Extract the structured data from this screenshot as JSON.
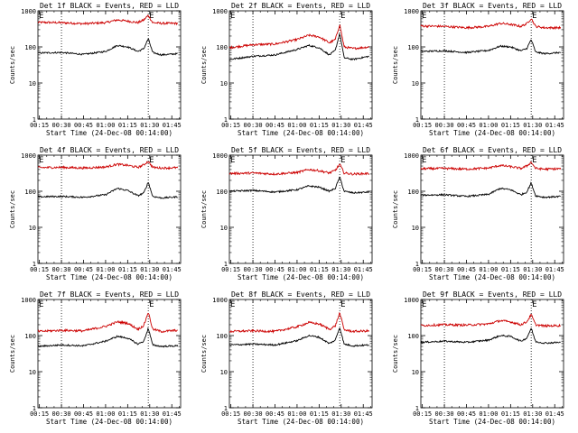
{
  "chart_data": [
    {
      "type": "line",
      "title": "Det 1f BLACK = Events, RED = LLD",
      "xlabel": "Start Time (24-Dec-08 00:14:00)",
      "ylabel": "Counts/sec",
      "xticks": [
        "00:15",
        "00:30",
        "00:45",
        "01:00",
        "01:15",
        "01:30",
        "01:45"
      ],
      "yticks": [
        "1",
        "10",
        "100",
        "1000"
      ],
      "yscale": "log",
      "ylim": [
        1,
        1000
      ],
      "markers": [
        {
          "label": "E",
          "time": "00:14"
        },
        {
          "label": "E",
          "time": "01:29"
        }
      ],
      "dotted_lines": [
        "00:30",
        "01:29"
      ],
      "series": [
        {
          "color": "#cc0000",
          "x": [
            "00:14",
            "00:30",
            "00:45",
            "01:00",
            "01:08",
            "01:15",
            "01:22",
            "01:26",
            "01:29",
            "01:32",
            "01:38",
            "01:49"
          ],
          "values": [
            480,
            470,
            440,
            470,
            560,
            520,
            470,
            560,
            750,
            470,
            450,
            450
          ]
        },
        {
          "color": "#000000",
          "x": [
            "00:14",
            "00:30",
            "00:45",
            "01:00",
            "01:08",
            "01:15",
            "01:22",
            "01:26",
            "01:29",
            "01:32",
            "01:38",
            "01:49"
          ],
          "values": [
            68,
            70,
            62,
            75,
            110,
            100,
            75,
            90,
            170,
            70,
            60,
            65
          ]
        }
      ]
    },
    {
      "type": "line",
      "title": "Det 2f BLACK = Events, RED = LLD",
      "xlabel": "Start Time (24-Dec-08 00:14:00)",
      "ylabel": "Counts/sec",
      "xticks": [
        "00:15",
        "00:30",
        "00:45",
        "01:00",
        "01:15",
        "01:30",
        "01:45"
      ],
      "yticks": [
        "1",
        "10",
        "100",
        "1000"
      ],
      "yscale": "log",
      "ylim": [
        1,
        1000
      ],
      "markers": [
        {
          "label": "E",
          "time": "00:14"
        },
        {
          "label": "E",
          "time": "01:29"
        }
      ],
      "dotted_lines": [
        "00:30",
        "01:29"
      ],
      "series": [
        {
          "color": "#cc0000",
          "x": [
            "00:14",
            "00:30",
            "00:45",
            "01:00",
            "01:08",
            "01:15",
            "01:22",
            "01:26",
            "01:29",
            "01:32",
            "01:38",
            "01:49"
          ],
          "values": [
            95,
            115,
            120,
            160,
            210,
            190,
            130,
            160,
            420,
            100,
            90,
            100
          ]
        },
        {
          "color": "#000000",
          "x": [
            "00:14",
            "00:30",
            "00:45",
            "01:00",
            "01:08",
            "01:15",
            "01:22",
            "01:26",
            "01:29",
            "01:32",
            "01:38",
            "01:49"
          ],
          "values": [
            45,
            55,
            60,
            85,
            110,
            95,
            60,
            80,
            240,
            50,
            45,
            55
          ]
        }
      ]
    },
    {
      "type": "line",
      "title": "Det 3f BLACK = Events, RED = LLD",
      "xlabel": "Start Time (24-Dec-08 00:14:00)",
      "ylabel": "Counts/sec",
      "xticks": [
        "00:15",
        "00:30",
        "00:45",
        "01:00",
        "01:15",
        "01:30",
        "01:45"
      ],
      "yticks": [
        "1",
        "10",
        "100",
        "1000"
      ],
      "yscale": "log",
      "ylim": [
        1,
        1000
      ],
      "markers": [
        {
          "label": "E",
          "time": "00:14"
        },
        {
          "label": "E",
          "time": "01:29"
        }
      ],
      "dotted_lines": [
        "00:30",
        "01:29"
      ],
      "series": [
        {
          "color": "#cc0000",
          "x": [
            "00:14",
            "00:30",
            "00:45",
            "01:00",
            "01:08",
            "01:15",
            "01:22",
            "01:26",
            "01:29",
            "01:32",
            "01:38",
            "01:49"
          ],
          "values": [
            380,
            370,
            340,
            370,
            450,
            420,
            370,
            440,
            620,
            370,
            340,
            340
          ]
        },
        {
          "color": "#000000",
          "x": [
            "00:14",
            "00:30",
            "00:45",
            "01:00",
            "01:08",
            "01:15",
            "01:22",
            "01:26",
            "01:29",
            "01:32",
            "01:38",
            "01:49"
          ],
          "values": [
            75,
            78,
            70,
            80,
            105,
            100,
            78,
            90,
            160,
            72,
            65,
            70
          ]
        }
      ]
    },
    {
      "type": "line",
      "title": "Det 4f BLACK = Events, RED = LLD",
      "xlabel": "Start Time (24-Dec-08 00:14:00)",
      "ylabel": "Counts/sec",
      "xticks": [
        "00:15",
        "00:30",
        "00:45",
        "01:00",
        "01:15",
        "01:30",
        "01:45"
      ],
      "yticks": [
        "1",
        "10",
        "100",
        "1000"
      ],
      "yscale": "log",
      "ylim": [
        1,
        1000
      ],
      "markers": [
        {
          "label": "E",
          "time": "00:14"
        },
        {
          "label": "E",
          "time": "01:29"
        }
      ],
      "dotted_lines": [
        "00:30",
        "01:29"
      ],
      "series": [
        {
          "color": "#cc0000",
          "x": [
            "00:14",
            "00:30",
            "00:45",
            "01:00",
            "01:08",
            "01:15",
            "01:22",
            "01:26",
            "01:29",
            "01:32",
            "01:38",
            "01:49"
          ],
          "values": [
            450,
            460,
            440,
            470,
            560,
            520,
            460,
            540,
            680,
            460,
            440,
            450
          ]
        },
        {
          "color": "#000000",
          "x": [
            "00:14",
            "00:30",
            "00:45",
            "01:00",
            "01:08",
            "01:15",
            "01:22",
            "01:26",
            "01:29",
            "01:32",
            "01:38",
            "01:49"
          ],
          "values": [
            70,
            72,
            68,
            80,
            120,
            105,
            75,
            90,
            180,
            72,
            65,
            70
          ]
        }
      ]
    },
    {
      "type": "line",
      "title": "Det 5f BLACK = Events, RED = LLD",
      "xlabel": "Start Time (24-Dec-08 00:14:00)",
      "ylabel": "Counts/sec",
      "xticks": [
        "00:15",
        "00:30",
        "00:45",
        "01:00",
        "01:15",
        "01:30",
        "01:45"
      ],
      "yticks": [
        "1",
        "10",
        "100",
        "1000"
      ],
      "yscale": "log",
      "ylim": [
        1,
        1000
      ],
      "markers": [
        {
          "label": "E",
          "time": "00:14"
        },
        {
          "label": "E",
          "time": "01:29"
        }
      ],
      "dotted_lines": [
        "00:30",
        "01:29"
      ],
      "series": [
        {
          "color": "#cc0000",
          "x": [
            "00:14",
            "00:30",
            "00:45",
            "01:00",
            "01:08",
            "01:15",
            "01:22",
            "01:26",
            "01:29",
            "01:32",
            "01:38",
            "01:49"
          ],
          "values": [
            310,
            320,
            300,
            330,
            400,
            370,
            320,
            380,
            560,
            320,
            300,
            310
          ]
        },
        {
          "color": "#000000",
          "x": [
            "00:14",
            "00:30",
            "00:45",
            "01:00",
            "01:08",
            "01:15",
            "01:22",
            "01:26",
            "01:29",
            "01:32",
            "01:38",
            "01:49"
          ],
          "values": [
            100,
            105,
            95,
            110,
            140,
            130,
            100,
            120,
            250,
            100,
            90,
            95
          ]
        }
      ]
    },
    {
      "type": "line",
      "title": "Det 6f BLACK = Events, RED = LLD",
      "xlabel": "Start Time (24-Dec-08 00:14:00)",
      "ylabel": "Counts/sec",
      "xticks": [
        "00:15",
        "00:30",
        "00:45",
        "01:00",
        "01:15",
        "01:30",
        "01:45"
      ],
      "yticks": [
        "1",
        "10",
        "100",
        "1000"
      ],
      "yscale": "log",
      "ylim": [
        1,
        1000
      ],
      "markers": [
        {
          "label": "E",
          "time": "00:14"
        },
        {
          "label": "E",
          "time": "01:29"
        }
      ],
      "dotted_lines": [
        "00:30",
        "01:29"
      ],
      "series": [
        {
          "color": "#cc0000",
          "x": [
            "00:14",
            "00:30",
            "00:45",
            "01:00",
            "01:08",
            "01:15",
            "01:22",
            "01:26",
            "01:29",
            "01:32",
            "01:38",
            "01:49"
          ],
          "values": [
            420,
            430,
            410,
            440,
            520,
            480,
            430,
            500,
            640,
            430,
            410,
            420
          ]
        },
        {
          "color": "#000000",
          "x": [
            "00:14",
            "00:30",
            "00:45",
            "01:00",
            "01:08",
            "01:15",
            "01:22",
            "01:26",
            "01:29",
            "01:32",
            "01:38",
            "01:49"
          ],
          "values": [
            78,
            80,
            72,
            82,
            120,
            110,
            80,
            95,
            170,
            75,
            68,
            72
          ]
        }
      ]
    },
    {
      "type": "line",
      "title": "Det 7f BLACK = Events, RED = LLD",
      "xlabel": "Start Time (24-Dec-08 00:14:00)",
      "ylabel": "Counts/sec",
      "xticks": [
        "00:15",
        "00:30",
        "00:45",
        "01:00",
        "01:15",
        "01:30",
        "01:45"
      ],
      "yticks": [
        "1",
        "10",
        "100",
        "1000"
      ],
      "yscale": "log",
      "ylim": [
        1,
        1000
      ],
      "markers": [
        {
          "label": "E",
          "time": "00:14"
        },
        {
          "label": "E",
          "time": "01:29"
        }
      ],
      "dotted_lines": [
        "00:30",
        "01:29"
      ],
      "series": [
        {
          "color": "#cc0000",
          "x": [
            "00:14",
            "00:30",
            "00:45",
            "01:00",
            "01:08",
            "01:15",
            "01:22",
            "01:26",
            "01:29",
            "01:32",
            "01:38",
            "01:49"
          ],
          "values": [
            130,
            140,
            135,
            180,
            240,
            220,
            150,
            190,
            450,
            150,
            130,
            140
          ]
        },
        {
          "color": "#000000",
          "x": [
            "00:14",
            "00:30",
            "00:45",
            "01:00",
            "01:08",
            "01:15",
            "01:22",
            "01:26",
            "01:29",
            "01:32",
            "01:38",
            "01:49"
          ],
          "values": [
            50,
            55,
            52,
            70,
            95,
            85,
            58,
            70,
            160,
            55,
            50,
            52
          ]
        }
      ]
    },
    {
      "type": "line",
      "title": "Det 8f BLACK = Events, RED = LLD",
      "xlabel": "Start Time (24-Dec-08 00:14:00)",
      "ylabel": "Counts/sec",
      "xticks": [
        "00:15",
        "00:30",
        "00:45",
        "01:00",
        "01:15",
        "01:30",
        "01:45"
      ],
      "yticks": [
        "1",
        "10",
        "100",
        "1000"
      ],
      "yscale": "log",
      "ylim": [
        1,
        1000
      ],
      "markers": [
        {
          "label": "E",
          "time": "00:14"
        },
        {
          "label": "E",
          "time": "01:29"
        }
      ],
      "dotted_lines": [
        "00:30",
        "01:29"
      ],
      "series": [
        {
          "color": "#cc0000",
          "x": [
            "00:14",
            "00:30",
            "00:45",
            "01:00",
            "01:08",
            "01:15",
            "01:22",
            "01:26",
            "01:29",
            "01:32",
            "01:38",
            "01:49"
          ],
          "values": [
            130,
            135,
            130,
            175,
            230,
            210,
            150,
            185,
            430,
            145,
            130,
            135
          ]
        },
        {
          "color": "#000000",
          "x": [
            "00:14",
            "00:30",
            "00:45",
            "01:00",
            "01:08",
            "01:15",
            "01:22",
            "01:26",
            "01:29",
            "01:32",
            "01:38",
            "01:49"
          ],
          "values": [
            55,
            58,
            55,
            72,
            100,
            90,
            60,
            75,
            170,
            58,
            52,
            55
          ]
        }
      ]
    },
    {
      "type": "line",
      "title": "Det 9f BLACK = Events, RED = LLD",
      "xlabel": "Start Time (24-Dec-08 00:14:00)",
      "ylabel": "Counts/sec",
      "xticks": [
        "00:15",
        "00:30",
        "00:45",
        "01:00",
        "01:15",
        "01:30",
        "01:45"
      ],
      "yticks": [
        "1",
        "10",
        "100",
        "1000"
      ],
      "yscale": "log",
      "ylim": [
        1,
        1000
      ],
      "markers": [
        {
          "label": "E",
          "time": "00:14"
        },
        {
          "label": "E",
          "time": "01:29"
        }
      ],
      "dotted_lines": [
        "00:30",
        "01:29"
      ],
      "series": [
        {
          "color": "#cc0000",
          "x": [
            "00:14",
            "00:30",
            "00:45",
            "01:00",
            "01:08",
            "01:15",
            "01:22",
            "01:26",
            "01:29",
            "01:32",
            "01:38",
            "01:49"
          ],
          "values": [
            190,
            200,
            195,
            210,
            260,
            240,
            200,
            240,
            380,
            200,
            185,
            190
          ]
        },
        {
          "color": "#000000",
          "x": [
            "00:14",
            "00:30",
            "00:45",
            "01:00",
            "01:08",
            "01:15",
            "01:22",
            "01:26",
            "01:29",
            "01:32",
            "01:38",
            "01:49"
          ],
          "values": [
            65,
            70,
            65,
            75,
            100,
            95,
            70,
            85,
            160,
            68,
            62,
            65
          ]
        }
      ]
    }
  ]
}
